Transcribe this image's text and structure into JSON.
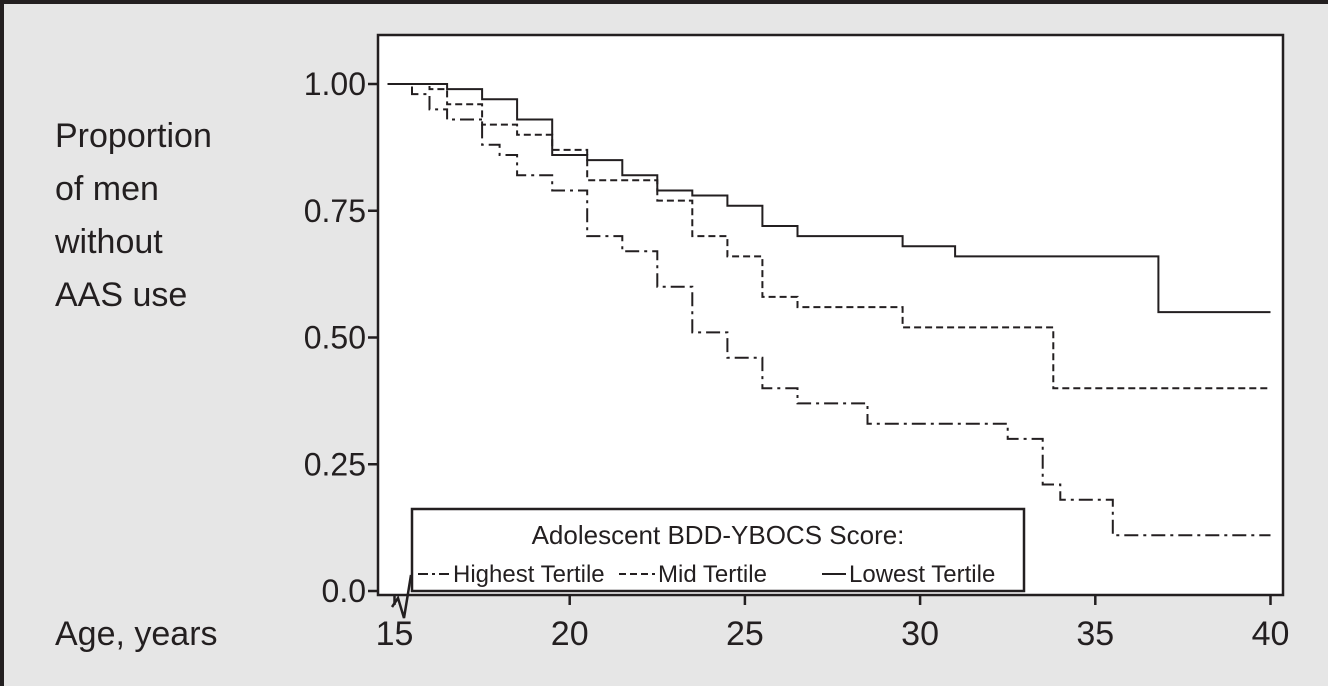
{
  "chart_data": {
    "type": "line",
    "step": true,
    "ylabel_lines": [
      "Proportion",
      "of men",
      "without",
      "AAS use"
    ],
    "xlabel": "Age, years",
    "xlim": [
      14,
      40.3
    ],
    "ylim": [
      0,
      1.1
    ],
    "x_ticks": [
      15,
      20,
      25,
      30,
      35,
      40
    ],
    "y_ticks": [
      {
        "value": 0,
        "label": "0.0"
      },
      {
        "value": 0.25,
        "label": "0.25"
      },
      {
        "value": 0.5,
        "label": "0.50"
      },
      {
        "value": 0.75,
        "label": "0.75"
      },
      {
        "value": 1.0,
        "label": "1.00"
      }
    ],
    "axis_break": true,
    "legend": {
      "position": "bottom-left",
      "title": "Adolescent BDD-YBOCS Score:"
    },
    "colors": {
      "background": "#e6e6e6",
      "plot_area": "#ffffff",
      "ink": "#231f20"
    },
    "series": [
      {
        "name": "Highest Tertile",
        "line_style": "dash-dot",
        "x": [
          14.8,
          15.5,
          16.0,
          16.5,
          17.5,
          18.0,
          18.5,
          19.5,
          20.5,
          21.5,
          22.0,
          22.5,
          23.5,
          24.0,
          24.5,
          25.5,
          26.5,
          27.0,
          27.5,
          28.5,
          29.0,
          29.5,
          30.0,
          30.5,
          32.5,
          33.5,
          34.0,
          35.0,
          35.5,
          36.5,
          40.0
        ],
        "y": [
          1.0,
          0.98,
          0.95,
          0.93,
          0.88,
          0.86,
          0.82,
          0.79,
          0.7,
          0.67,
          0.67,
          0.6,
          0.51,
          0.51,
          0.46,
          0.4,
          0.37,
          0.37,
          0.37,
          0.33,
          0.33,
          0.33,
          0.33,
          0.33,
          0.3,
          0.21,
          0.18,
          0.18,
          0.11,
          0.11,
          0.11
        ]
      },
      {
        "name": "Mid Tertile",
        "line_style": "dashed",
        "x": [
          14.8,
          16.0,
          16.5,
          17.5,
          18.5,
          19.5,
          20.5,
          21.5,
          22.5,
          23.5,
          24.5,
          25.5,
          26.5,
          27.5,
          28.5,
          29.5,
          31.0,
          33.0,
          33.8,
          40.0
        ],
        "y": [
          1.0,
          0.99,
          0.96,
          0.92,
          0.9,
          0.87,
          0.81,
          0.81,
          0.77,
          0.7,
          0.66,
          0.58,
          0.56,
          0.56,
          0.56,
          0.52,
          0.52,
          0.52,
          0.4,
          0.4
        ]
      },
      {
        "name": "Lowest Tertile",
        "line_style": "solid",
        "x": [
          14.8,
          16.5,
          17.5,
          18.5,
          19.5,
          20.5,
          21.5,
          22.5,
          23.5,
          24.5,
          25.5,
          26.5,
          29.5,
          30.5,
          31.0,
          36.8,
          40.0
        ],
        "y": [
          1.0,
          0.99,
          0.97,
          0.93,
          0.86,
          0.85,
          0.82,
          0.79,
          0.78,
          0.76,
          0.72,
          0.7,
          0.68,
          0.68,
          0.66,
          0.55,
          0.55
        ]
      }
    ]
  }
}
